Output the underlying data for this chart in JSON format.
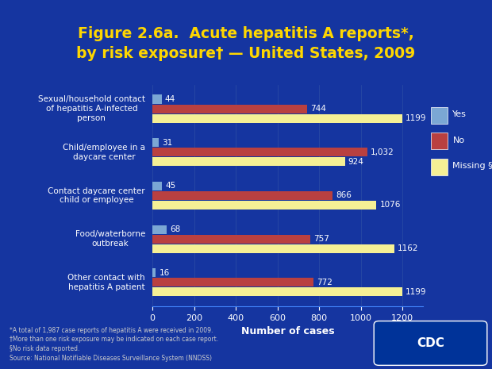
{
  "title_line1": "Figure 2.6a.  Acute hepatitis A reports*,",
  "title_line2": "by risk exposure† — United States, 2009",
  "categories": [
    "Sexual/household contact\nof hepatitis A-infected\nperson",
    "Child/employee in a\ndaycare center",
    "Contact daycare center\nchild or employee",
    "Food/waterborne\noutbreak",
    "Other contact with\nhepatitis A patient"
  ],
  "yes_values": [
    44,
    31,
    45,
    68,
    16
  ],
  "no_values": [
    744,
    1032,
    866,
    757,
    772
  ],
  "missing_values": [
    1199,
    924,
    1076,
    1162,
    1199
  ],
  "yes_color": "#7BA7D4",
  "no_color": "#B94040",
  "missing_color": "#F5F095",
  "bar_height": 0.22,
  "xlabel": "Number of cases",
  "xlim": [
    0,
    1300
  ],
  "xticks": [
    0,
    200,
    400,
    600,
    800,
    1000,
    1200
  ],
  "legend_labels": [
    "Yes",
    "No",
    "Missing §"
  ],
  "footnote": "*A total of 1,987 case reports of hepatitis A were received in 2009.\n†More than one risk exposure may be indicated on each case report.\n§No risk data reported.\nSource: National Notifiable Diseases Surveillance System (NNDSS)",
  "bg_outer": "#1a3a8c",
  "bg_inner": "#1a3a8c",
  "plot_bg": "#1a3a8c",
  "title_color": "#FFD700",
  "label_color": "#FFFFFF",
  "tick_color": "#FFFFFF",
  "axis_color": "#FFFFFF",
  "footnote_color": "#CCCCCC"
}
